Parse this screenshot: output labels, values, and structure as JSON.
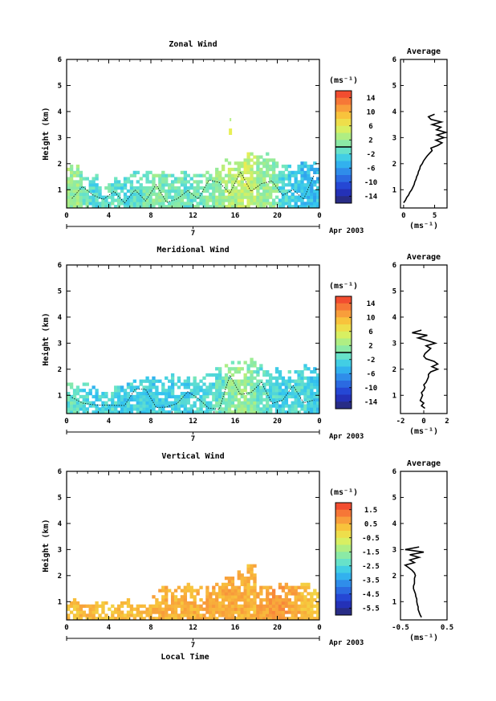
{
  "chart_data": [
    {
      "type": "heatmap",
      "title": "Zonal Wind",
      "ylabel": "Height (km)",
      "xlabel": "",
      "date_label": "Apr 2003",
      "day_label": "7",
      "x_ticks": [
        "0",
        "4",
        "8",
        "12",
        "16",
        "20",
        "0"
      ],
      "y_ticks": [
        "1",
        "2",
        "3",
        "4",
        "5",
        "6"
      ],
      "xlim": [
        0,
        24
      ],
      "ylim": [
        0.3,
        6
      ],
      "colorbar": {
        "unit": "(ms⁻¹)",
        "range": [
          -16,
          16
        ],
        "step": 2,
        "tick_labels": [
          "14",
          "10",
          "6",
          "2",
          "-2",
          "-6",
          "-10",
          "-14"
        ],
        "zero_line": 0
      },
      "field": {
        "top_height_km": [
          1.8,
          1.6,
          1.5,
          1.2,
          1.3,
          1.4,
          1.6,
          1.6,
          1.6,
          1.7,
          1.5,
          1.6,
          1.6,
          1.7,
          1.9,
          2.0,
          2.2,
          2.3,
          2.4,
          2.1,
          2.0,
          1.9,
          2.0,
          1.9
        ],
        "mean_value_ms": [
          2,
          0,
          -2,
          -1,
          -1,
          -2,
          -1,
          0,
          1,
          0,
          0,
          -1,
          0,
          1,
          2,
          3,
          4,
          4,
          2,
          1,
          -2,
          -3,
          -4,
          -4
        ],
        "note_isolated_patch": {
          "time_h": 15.4,
          "height_km": 3.2
        }
      },
      "average_profile": {
        "title": "Average",
        "xlabel": "(ms⁻¹)",
        "xlim": [
          -0.5,
          7
        ],
        "x_ticks": [
          "0",
          "5"
        ],
        "y_ticks": [
          "1",
          "2",
          "3",
          "4",
          "5",
          "6"
        ],
        "heights_km": [
          0.5,
          0.6,
          0.7,
          0.8,
          0.9,
          1.0,
          1.1,
          1.2,
          1.3,
          1.4,
          1.5,
          1.6,
          1.7,
          1.8,
          1.9,
          2.0,
          2.1,
          2.2,
          2.3,
          2.4,
          2.5,
          2.6,
          2.7,
          2.8,
          2.9,
          3.0,
          3.1,
          3.2,
          3.3,
          3.4,
          3.5,
          3.6,
          3.7,
          3.8,
          3.9
        ],
        "values_ms": [
          0.0,
          0.3,
          0.5,
          0.8,
          1.0,
          1.3,
          1.5,
          1.7,
          1.8,
          2.0,
          2.1,
          2.3,
          2.4,
          2.6,
          2.7,
          3.0,
          3.2,
          3.5,
          3.8,
          4.2,
          4.6,
          4.4,
          5.5,
          6.2,
          5.2,
          6.5,
          5.4,
          6.8,
          5.3,
          6.0,
          4.6,
          6.1,
          4.4,
          4.0,
          5.0
        ]
      }
    },
    {
      "type": "heatmap",
      "title": "Meridional Wind",
      "ylabel": "Height (km)",
      "xlabel": "",
      "date_label": "Apr 2003",
      "day_label": "7",
      "x_ticks": [
        "0",
        "4",
        "8",
        "12",
        "16",
        "20",
        "0"
      ],
      "y_ticks": [
        "1",
        "2",
        "3",
        "4",
        "5",
        "6"
      ],
      "xlim": [
        0,
        24
      ],
      "ylim": [
        0.3,
        6
      ],
      "colorbar": {
        "unit": "(ms⁻¹)",
        "range": [
          -16,
          16
        ],
        "step": 2,
        "tick_labels": [
          "14",
          "10",
          "6",
          "2",
          "-2",
          "-6",
          "-10",
          "-14"
        ],
        "zero_line": 0
      },
      "field": {
        "top_height_km": [
          1.5,
          1.4,
          1.2,
          1.0,
          1.2,
          1.4,
          1.5,
          1.6,
          1.6,
          1.7,
          1.6,
          1.6,
          1.7,
          1.8,
          2.0,
          2.1,
          2.2,
          2.3,
          2.0,
          1.9,
          1.9,
          2.0,
          2.1,
          2.0
        ],
        "mean_value_ms": [
          -1,
          -2,
          -3,
          -2,
          -2,
          -3,
          -3,
          -3,
          -3,
          -3,
          -2,
          -3,
          -2,
          -2,
          -1,
          1,
          2,
          1,
          -1,
          -2,
          -3,
          -2,
          -2,
          -3
        ]
      },
      "average_profile": {
        "title": "Average",
        "xlabel": "(ms⁻¹)",
        "xlim": [
          -2,
          2
        ],
        "x_ticks": [
          "-2",
          "0",
          "2"
        ],
        "y_ticks": [
          "1",
          "2",
          "3",
          "4",
          "5",
          "6"
        ],
        "heights_km": [
          0.5,
          0.6,
          0.7,
          0.8,
          0.9,
          1.0,
          1.1,
          1.2,
          1.3,
          1.4,
          1.5,
          1.6,
          1.7,
          1.8,
          1.9,
          2.0,
          2.1,
          2.2,
          2.3,
          2.4,
          2.5,
          2.6,
          2.8,
          2.9,
          3.0,
          3.1,
          3.2,
          3.3,
          3.4,
          3.5
        ],
        "values_ms": [
          0.1,
          -0.2,
          0.0,
          -0.3,
          -0.2,
          -0.1,
          -0.2,
          0.0,
          0.1,
          0.0,
          0.2,
          0.3,
          0.4,
          0.4,
          0.6,
          1.2,
          0.7,
          1.2,
          0.9,
          0.2,
          0.0,
          0.1,
          0.6,
          0.2,
          1.0,
          0.3,
          -0.5,
          0.3,
          -1.0,
          -0.2
        ]
      }
    },
    {
      "type": "heatmap",
      "title": "Vertical Wind",
      "ylabel": "Height (km)",
      "xlabel": "Local Time",
      "date_label": "Apr 2003",
      "day_label": "7",
      "x_ticks": [
        "0",
        "4",
        "8",
        "12",
        "16",
        "20",
        "0"
      ],
      "y_ticks": [
        "1",
        "2",
        "3",
        "4",
        "5",
        "6"
      ],
      "xlim": [
        0,
        24
      ],
      "ylim": [
        0.3,
        6
      ],
      "colorbar": {
        "unit": "(ms⁻¹)",
        "range": [
          -6,
          2
        ],
        "step": 0.5,
        "tick_labels": [
          "1.5",
          "0.5",
          "-0.5",
          "-1.5",
          "-2.5",
          "-3.5",
          "-4.5",
          "-5.5"
        ],
        "zero_line": null
      },
      "field": {
        "top_height_km": [
          1.0,
          0.8,
          1.1,
          0.9,
          0.8,
          1.0,
          0.9,
          0.9,
          1.3,
          1.5,
          1.4,
          1.5,
          1.4,
          1.6,
          1.7,
          1.9,
          2.2,
          2.4,
          1.6,
          1.6,
          1.7,
          1.6,
          1.7,
          1.3
        ],
        "mean_value_ms": [
          0.3,
          0.4,
          0.3,
          0.2,
          0.3,
          0.3,
          0.3,
          0.4,
          0.5,
          0.5,
          0.4,
          0.5,
          0.5,
          0.6,
          0.5,
          0.6,
          0.5,
          0.4,
          0.6,
          0.8,
          0.8,
          0.6,
          0.3,
          0.2
        ]
      },
      "average_profile": {
        "title": "Average",
        "xlabel": "(ms⁻¹)",
        "xlim": [
          -0.5,
          0.5
        ],
        "x_ticks": [
          "-0.5",
          "0.5"
        ],
        "y_ticks": [
          "1",
          "2",
          "3",
          "4",
          "5",
          "6"
        ],
        "heights_km": [
          0.4,
          0.5,
          0.6,
          0.7,
          0.8,
          0.9,
          1.0,
          1.1,
          1.2,
          1.3,
          1.4,
          1.5,
          1.6,
          1.7,
          1.8,
          1.9,
          2.0,
          2.1,
          2.2,
          2.3,
          2.4,
          2.5,
          2.6,
          2.7,
          2.8,
          2.9,
          3.0,
          3.1
        ],
        "values_ms": [
          -0.05,
          -0.08,
          -0.1,
          -0.12,
          -0.12,
          -0.14,
          -0.15,
          -0.15,
          -0.17,
          -0.18,
          -0.2,
          -0.22,
          -0.22,
          -0.2,
          -0.2,
          -0.2,
          -0.18,
          -0.2,
          -0.25,
          -0.32,
          -0.4,
          -0.2,
          -0.3,
          -0.1,
          -0.3,
          0.0,
          -0.4,
          -0.1
        ]
      }
    }
  ]
}
